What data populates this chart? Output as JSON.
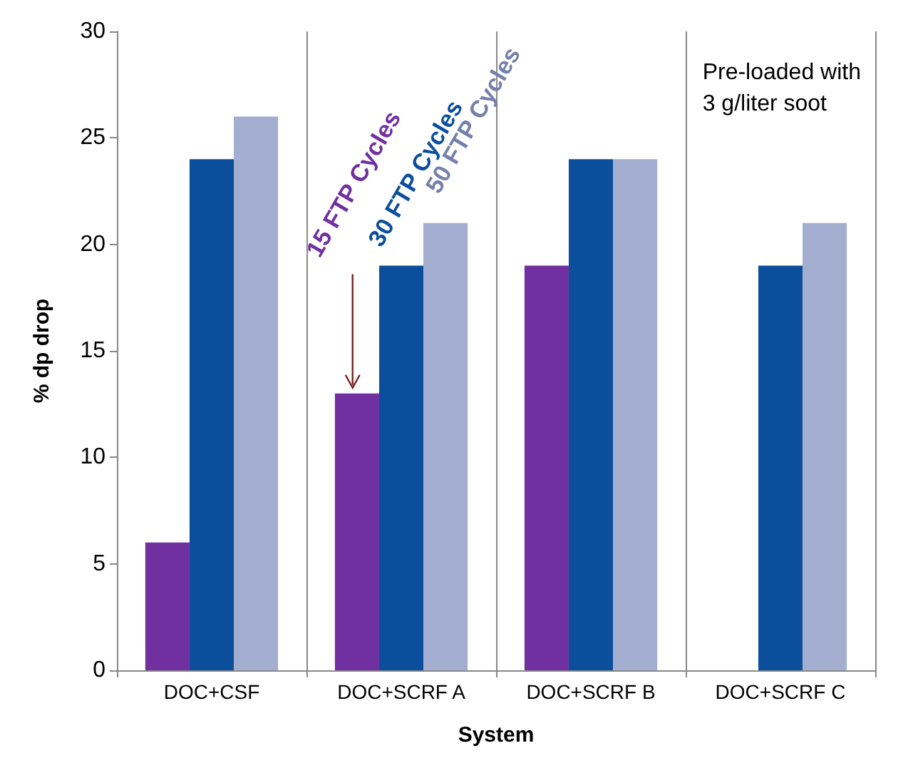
{
  "chart_data": {
    "type": "bar",
    "xlabel": "System",
    "ylabel": "% dp drop",
    "categories": [
      "DOC+CSF",
      "DOC+SCRF A",
      "DOC+SCRF B",
      "DOC+SCRF C"
    ],
    "series": [
      {
        "name": "15 FTP Cycles",
        "color": "#7030a0",
        "values": [
          6,
          13,
          19,
          null
        ]
      },
      {
        "name": "30 FTP Cycles",
        "color": "#0b4f9c",
        "values": [
          24,
          19,
          24,
          19
        ]
      },
      {
        "name": "50 FTP Cycles",
        "color": "#a3adcf",
        "values": [
          26,
          21,
          24,
          21
        ]
      }
    ],
    "ylim": [
      0,
      30
    ],
    "yticks": [
      0,
      5,
      10,
      15,
      20,
      25,
      30
    ],
    "grid": "x",
    "legend": false,
    "annotations": [
      "Pre-loaded with\n3 g/liter soot"
    ]
  }
}
